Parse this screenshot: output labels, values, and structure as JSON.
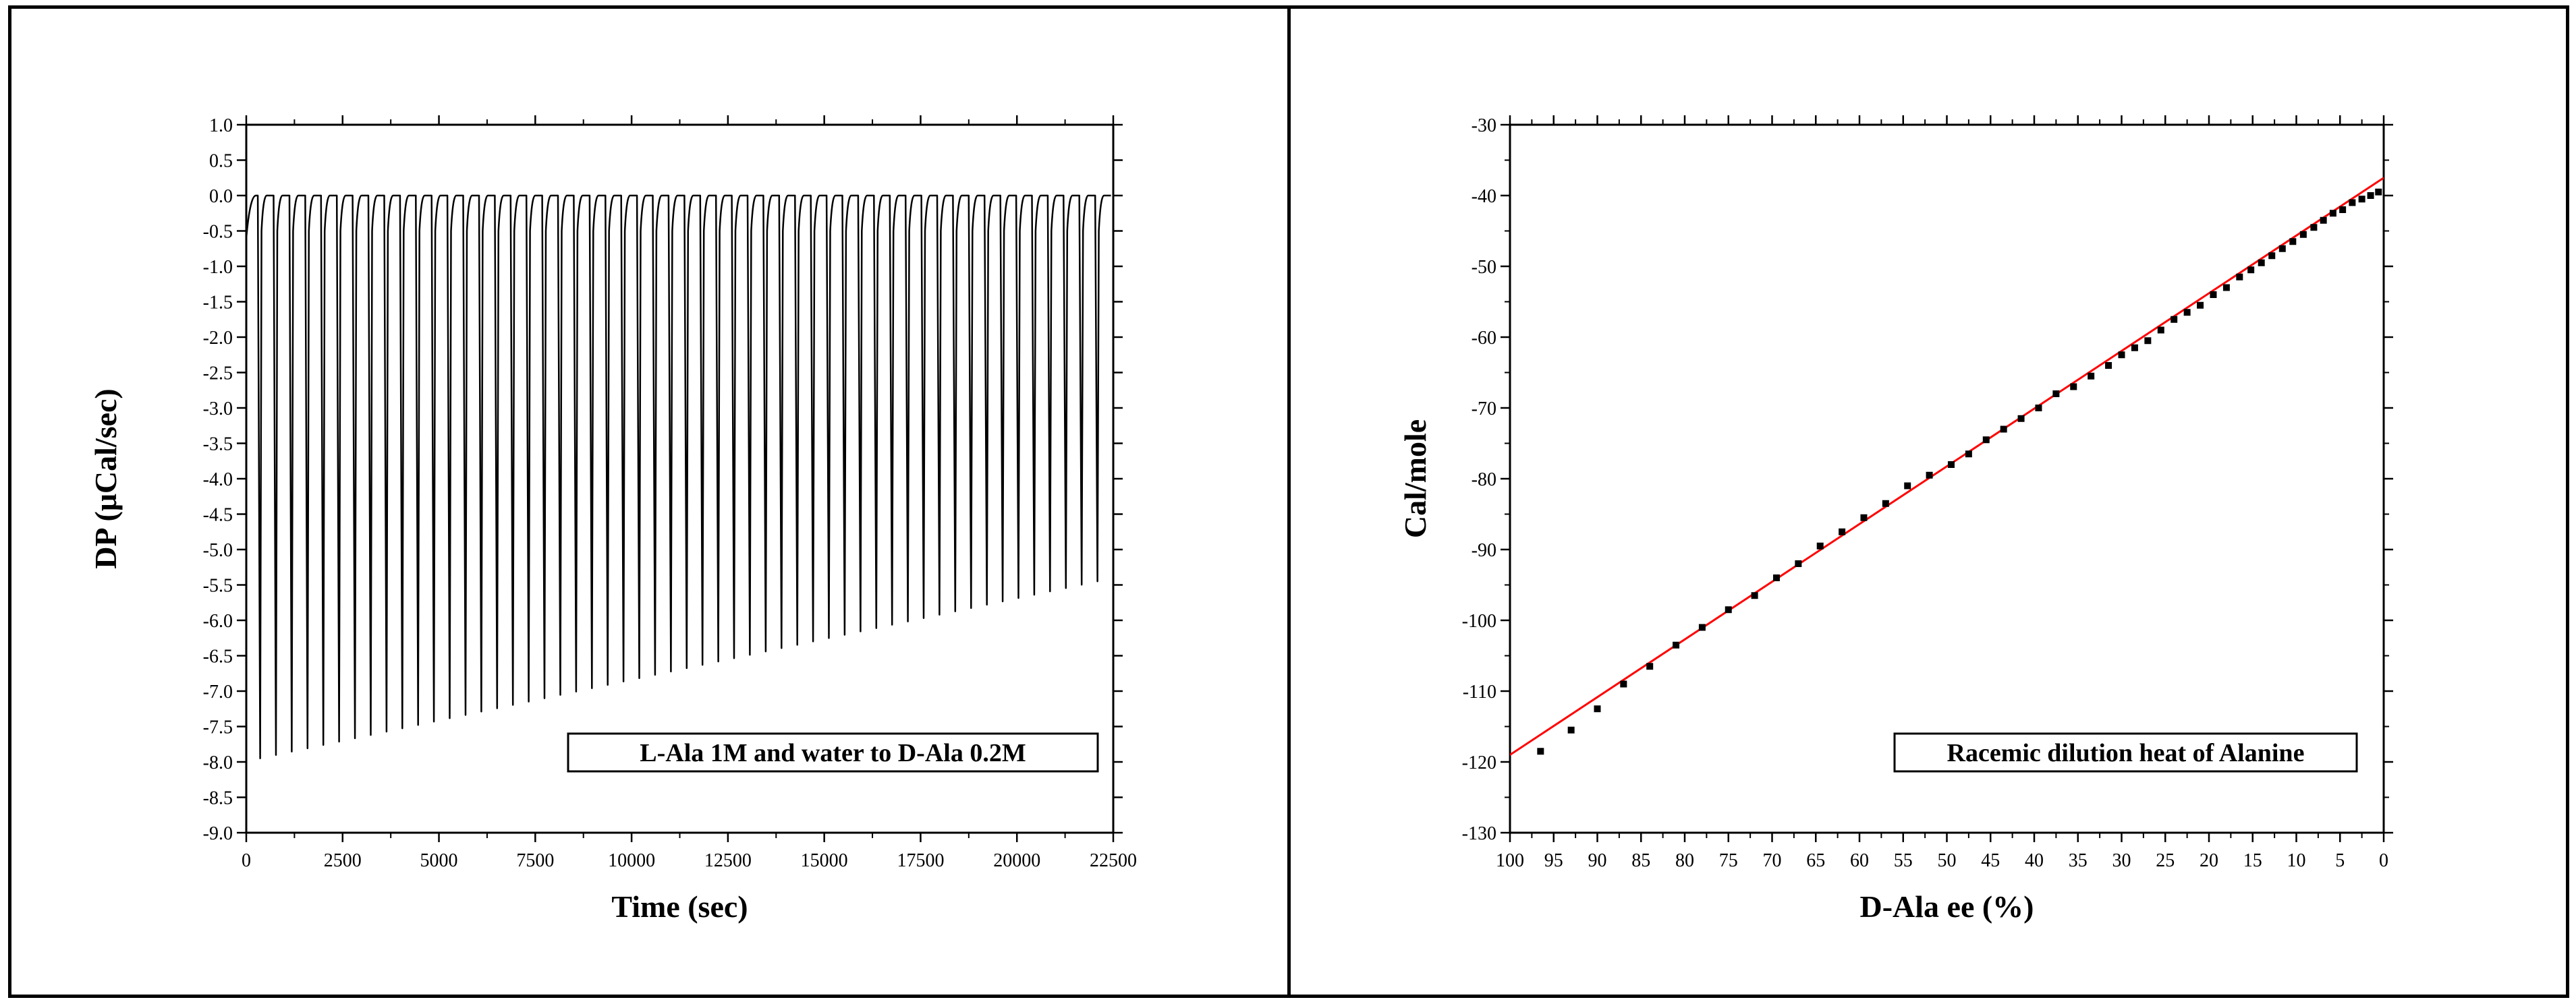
{
  "chart_data": [
    {
      "type": "line",
      "title": "",
      "xlabel": "Time (sec)",
      "ylabel": "DP (μCal/sec)",
      "xlim": [
        0,
        22500
      ],
      "ylim": [
        -9.0,
        1.0
      ],
      "x_ticks": [
        0,
        2500,
        5000,
        7500,
        10000,
        12500,
        15000,
        17500,
        20000,
        22500
      ],
      "x_tick_labels": [
        "0",
        "2500",
        "5000",
        "7500",
        "10000",
        "12500",
        "15000",
        "17500",
        "20000",
        "22500"
      ],
      "y_ticks": [
        1.0,
        0.5,
        0.0,
        -0.5,
        -1.0,
        -1.5,
        -2.0,
        -2.5,
        -3.0,
        -3.5,
        -4.0,
        -4.5,
        -5.0,
        -5.5,
        -6.0,
        -6.5,
        -7.0,
        -7.5,
        -8.0,
        -8.5,
        -9.0
      ],
      "y_tick_labels": [
        "1.0",
        "0.5",
        "0.0",
        "-0.5",
        "-1.0",
        "-1.5",
        "-2.0",
        "-2.5",
        "-3.0",
        "-3.5",
        "-4.0",
        "-4.5",
        "-5.0",
        "-5.5",
        "-6.0",
        "-6.5",
        "-7.0",
        "-7.5",
        "-8.0",
        "-8.5",
        "-9.0"
      ],
      "baseline": 0.0,
      "injection_start_time": 300,
      "injection_interval": 410,
      "injection_count": 54,
      "peak_first": -7.95,
      "peak_last": -5.45,
      "legend": "L-Ala 1M and water to D-Ala 0.2M",
      "legend_position": "bottom-right",
      "grid": false
    },
    {
      "type": "scatter",
      "title": "",
      "xlabel": "D-Ala ee (%)",
      "ylabel": "Cal/mole",
      "xlim": [
        100,
        0
      ],
      "ylim": [
        -130,
        -30
      ],
      "x_ticks": [
        100,
        95,
        90,
        85,
        80,
        75,
        70,
        65,
        60,
        55,
        50,
        45,
        40,
        35,
        30,
        25,
        20,
        15,
        10,
        5,
        0
      ],
      "x_tick_labels": [
        "100",
        "95",
        "90",
        "85",
        "80",
        "75",
        "70",
        "65",
        "60",
        "55",
        "50",
        "45",
        "40",
        "35",
        "30",
        "25",
        "20",
        "15",
        "10",
        "5",
        "0"
      ],
      "y_ticks": [
        -30,
        -40,
        -50,
        -60,
        -70,
        -80,
        -90,
        -100,
        -110,
        -120,
        -130
      ],
      "y_tick_labels": [
        "-30",
        "-40",
        "-50",
        "-60",
        "-70",
        "-80",
        "-90",
        "-100",
        "-110",
        "-120",
        "-130"
      ],
      "points": {
        "x": [
          96.5,
          93,
          90,
          87,
          84,
          81,
          78,
          75,
          72,
          69.5,
          67,
          64.5,
          62,
          59.5,
          57,
          54.5,
          52,
          49.5,
          47.5,
          45.5,
          43.5,
          41.5,
          39.5,
          37.5,
          35.5,
          33.5,
          31.5,
          30,
          28.5,
          27,
          25.5,
          24,
          22.5,
          21,
          19.5,
          18,
          16.5,
          15.2,
          14,
          12.8,
          11.6,
          10.4,
          9.2,
          8,
          6.9,
          5.8,
          4.7,
          3.6,
          2.5,
          1.5,
          0.6
        ],
        "y": [
          -118.5,
          -115.5,
          -112.5,
          -109,
          -106.5,
          -103.5,
          -101,
          -98.5,
          -96.5,
          -94,
          -92,
          -89.5,
          -87.5,
          -85.5,
          -83.5,
          -81,
          -79.5,
          -78,
          -76.5,
          -74.5,
          -73,
          -71.5,
          -70,
          -68,
          -67,
          -65.5,
          -64,
          -62.5,
          -61.5,
          -60.5,
          -59,
          -57.5,
          -56.5,
          -55.5,
          -54,
          -53,
          -51.5,
          -50.5,
          -49.5,
          -48.5,
          -47.5,
          -46.5,
          -45.5,
          -44.5,
          -43.5,
          -42.5,
          -42,
          -41,
          -40.5,
          -40,
          -39.5
        ]
      },
      "fit_line": {
        "x": [
          100,
          0
        ],
        "y": [
          -119,
          -37.5
        ],
        "color": "#ff0000"
      },
      "legend": "Racemic dilution heat of Alanine",
      "legend_position": "bottom-right",
      "grid": false
    }
  ]
}
